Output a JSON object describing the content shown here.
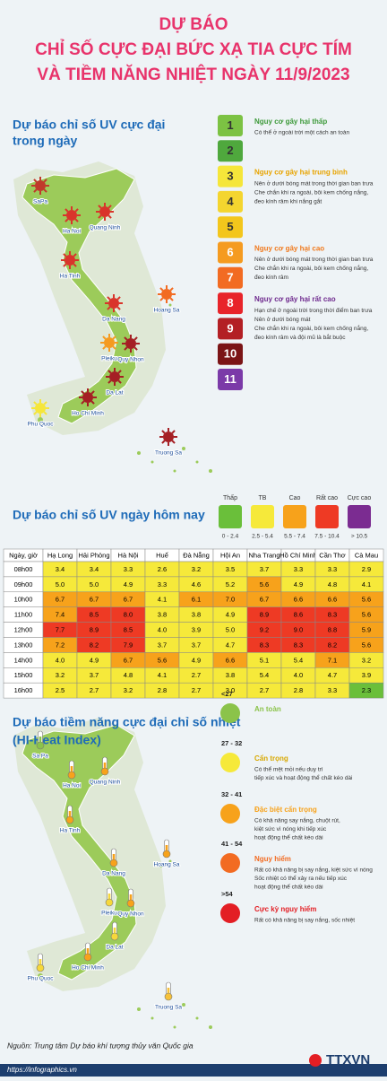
{
  "header": {
    "title_lines": [
      "DỰ BÁO",
      "CHỈ SỐ CỰC ĐẠI BỨC XẠ TIA CỰC TÍM",
      "VÀ TIỀM NĂNG NHIỆT NGÀY 11/9/2023"
    ]
  },
  "uv_max": {
    "title_lines": [
      "Dự báo chỉ số UV cực đại",
      "trong ngày"
    ],
    "cities": [
      {
        "label": "SaPa",
        "color": "#c0392b"
      },
      {
        "label": "Ha Noi",
        "color": "#d9342b"
      },
      {
        "label": "Quang Ninh",
        "color": "#d9342b"
      },
      {
        "label": "Ha Tinh",
        "color": "#d9342b"
      },
      {
        "label": "Hoang Sa",
        "color": "#f26b22"
      },
      {
        "label": "Da Nang",
        "color": "#d9342b"
      },
      {
        "label": "Pleiku",
        "color": "#f59b20"
      },
      {
        "label": "Quy Nhon",
        "color": "#a51f24"
      },
      {
        "label": "Da Lat",
        "color": "#a51f24"
      },
      {
        "label": "Ho Chi Minh",
        "color": "#a51f24"
      },
      {
        "label": "Phu Quoc",
        "color": "#f5e63a"
      },
      {
        "label": "Truong Sa",
        "color": "#a51f24"
      }
    ],
    "scale": [
      {
        "value": 1,
        "color": "#7cc243"
      },
      {
        "value": 2,
        "color": "#4fa83d"
      },
      {
        "value": 3,
        "color": "#f5e63a"
      },
      {
        "value": 4,
        "color": "#f4d52f"
      },
      {
        "value": 5,
        "color": "#f3c61c"
      },
      {
        "value": 6,
        "color": "#f59b20"
      },
      {
        "value": 7,
        "color": "#f26b22"
      },
      {
        "value": 8,
        "color": "#e8242a"
      },
      {
        "value": 9,
        "color": "#b31f24"
      },
      {
        "value": 10,
        "color": "#7b1416"
      },
      {
        "value": 11,
        "color": "#7b3aa8"
      }
    ],
    "groups": [
      {
        "title": "Nguy cơ gây hại thấp",
        "color": "#3d9a3a",
        "lines": [
          "Có thể ở ngoài trời một cách an toàn"
        ]
      },
      {
        "title": "Nguy cơ gây hại trung bình",
        "color": "#e8a400",
        "lines": [
          "Nên ở dưới bóng mát trong thời gian ban trưa",
          "Che chắn khi ra ngoài, bôi kem chống nắng,",
          "đeo kính râm khi nắng gắt"
        ]
      },
      {
        "title": "Nguy cơ gây hại cao",
        "color": "#f07a1e",
        "lines": [
          "Nên ở dưới bóng mát trong thời gian ban trưa",
          "Che chắn khi ra ngoài, bôi kem chống nắng,",
          "đeo kính râm"
        ]
      },
      {
        "title": "Nguy cơ gây hại rất cao",
        "color": "#6f2a8e",
        "lines": [
          "Hạn chế ở ngoài trời trong thời điểm ban trưa",
          "Nên ở dưới bóng mát",
          "Che chắn khi ra ngoài, bôi kem chống nắng,",
          "đeo kính râm và đội mũ là bắt buộc"
        ]
      }
    ]
  },
  "uv_today": {
    "title": "Dự báo chỉ số UV ngày hôm nay",
    "levels": [
      {
        "label": "Thấp",
        "range": "0 - 2.4",
        "color": "#6abf3a"
      },
      {
        "label": "TB",
        "range": "2.5 - 5.4",
        "color": "#f6e93a"
      },
      {
        "label": "Cao",
        "range": "5.5 - 7.4",
        "color": "#f7a21b"
      },
      {
        "label": "Rất cao",
        "range": "7.5 - 10.4",
        "color": "#ee3a24"
      },
      {
        "label": "Cực cao",
        "range": "> 10.5",
        "color": "#7b2c91"
      }
    ],
    "table": {
      "header": [
        "Ngày, giờ",
        "Hạ Long",
        "Hải Phòng",
        "Hà Nội",
        "Huế",
        "Đà Nẵng",
        "Hội An",
        "Nha Trang",
        "Hồ Chí Minh",
        "Cần Thơ",
        "Cà Mau"
      ],
      "rows": [
        [
          "08h00",
          "3.4",
          "3.4",
          "3.3",
          "2.6",
          "3.2",
          "3.5",
          "3.7",
          "3.3",
          "3.3",
          "2.9"
        ],
        [
          "09h00",
          "5.0",
          "5.0",
          "4.9",
          "3.3",
          "4.6",
          "5.2",
          "5.6",
          "4.9",
          "4.8",
          "4.1"
        ],
        [
          "10h00",
          "6.7",
          "6.7",
          "6.7",
          "4.1",
          "6.1",
          "7.0",
          "6.7",
          "6.6",
          "6.6",
          "5.6"
        ],
        [
          "11h00",
          "7.4",
          "8.5",
          "8.0",
          "3.8",
          "3.8",
          "4.9",
          "8.9",
          "8.6",
          "8.3",
          "5.6"
        ],
        [
          "12h00",
          "7.7",
          "8.9",
          "8.5",
          "4.0",
          "3.9",
          "5.0",
          "9.2",
          "9.0",
          "8.8",
          "5.9"
        ],
        [
          "13h00",
          "7.2",
          "8.2",
          "7.9",
          "3.7",
          "3.7",
          "4.7",
          "8.3",
          "8.3",
          "8.2",
          "5.6"
        ],
        [
          "14h00",
          "4.0",
          "4.9",
          "6.7",
          "5.6",
          "4.9",
          "6.6",
          "5.1",
          "5.4",
          "7.1",
          "3.2"
        ],
        [
          "15h00",
          "3.2",
          "3.7",
          "4.8",
          "4.1",
          "2.7",
          "3.8",
          "5.4",
          "4.0",
          "4.7",
          "3.9"
        ],
        [
          "16h00",
          "2.5",
          "2.7",
          "3.2",
          "2.8",
          "2.7",
          "3.0",
          "2.7",
          "2.8",
          "3.3",
          "2.3"
        ]
      ]
    }
  },
  "heat": {
    "title_lines": [
      "Dự báo tiềm năng cực đại chỉ số nhiệt",
      "(HI-Heat Index)"
    ],
    "cities": [
      {
        "label": "Sa Pa",
        "color": "#8bc34a"
      },
      {
        "label": "Ha Noi",
        "color": "#f7a21b"
      },
      {
        "label": "Quang Ninh",
        "color": "#f7a21b"
      },
      {
        "label": "Ha Tinh",
        "color": "#f7a21b"
      },
      {
        "label": "Hoang Sa",
        "color": "#f7a21b"
      },
      {
        "label": "Da Nang",
        "color": "#f7a21b"
      },
      {
        "label": "Pleiku",
        "color": "#f6d83a"
      },
      {
        "label": "Quy Nhon",
        "color": "#f7a21b"
      },
      {
        "label": "Da Lat",
        "color": "#f6d83a"
      },
      {
        "label": "Ho Chi Minh",
        "color": "#f7a21b"
      },
      {
        "label": "Phu Quoc",
        "color": "#f6d83a"
      },
      {
        "label": "Truong Sa",
        "color": "#f6c13a"
      }
    ],
    "levels": [
      {
        "range": "<27",
        "title": "An toàn",
        "color": "#8bc34a",
        "lines": []
      },
      {
        "range": "27 - 32",
        "title": "Cẩn trọng",
        "color": "#f6e93a",
        "lines": [
          "Có thể mệt mỏi nếu duy trì",
          "tiếp xúc và hoạt động thể chất kéo dài"
        ]
      },
      {
        "range": "32 - 41",
        "title": "Đặc biệt cẩn trọng",
        "color": "#f7a21b",
        "lines": [
          "Có khả năng say nắng, chuột rút,",
          "kiệt sức vì nóng khi tiếp xúc",
          "hoạt động thể chất kéo dài"
        ]
      },
      {
        "range": "41 - 54",
        "title": "Nguy hiểm",
        "color": "#f26b22",
        "lines": [
          "Rất có khả năng bị say nắng, kiệt sức vì nóng",
          "Sốc nhiệt có thể xảy ra nếu tiếp xúc",
          "hoạt động thể chất kéo dài"
        ]
      },
      {
        "range": ">54",
        "title": "Cực kỳ nguy hiểm",
        "color": "#e31e24",
        "lines": [
          "Rất có khả năng bị say nắng, sốc nhiệt"
        ]
      }
    ]
  },
  "footer": {
    "source": "Nguồn: Trung tâm Dự báo khí tượng thủy văn Quốc gia",
    "url": "https://infographics.vn",
    "brand": "TTXVN"
  }
}
